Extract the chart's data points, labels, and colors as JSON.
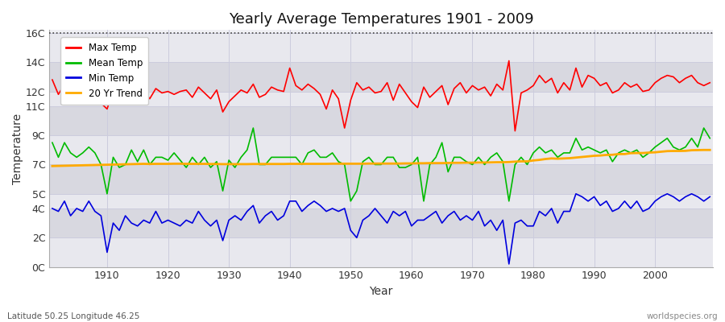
{
  "title": "Yearly Average Temperatures 1901 - 2009",
  "xlabel": "Year",
  "ylabel": "Temperature",
  "subtitle_left": "Latitude 50.25 Longitude 46.25",
  "subtitle_right": "worldspecies.org",
  "years": [
    1901,
    1902,
    1903,
    1904,
    1905,
    1906,
    1907,
    1908,
    1909,
    1910,
    1911,
    1912,
    1913,
    1914,
    1915,
    1916,
    1917,
    1918,
    1919,
    1920,
    1921,
    1922,
    1923,
    1924,
    1925,
    1926,
    1927,
    1928,
    1929,
    1930,
    1931,
    1932,
    1933,
    1934,
    1935,
    1936,
    1937,
    1938,
    1939,
    1940,
    1941,
    1942,
    1943,
    1944,
    1945,
    1946,
    1947,
    1948,
    1949,
    1950,
    1951,
    1952,
    1953,
    1954,
    1955,
    1956,
    1957,
    1958,
    1959,
    1960,
    1961,
    1962,
    1963,
    1964,
    1965,
    1966,
    1967,
    1968,
    1969,
    1970,
    1971,
    1972,
    1973,
    1974,
    1975,
    1976,
    1977,
    1978,
    1979,
    1980,
    1981,
    1982,
    1983,
    1984,
    1985,
    1986,
    1987,
    1988,
    1989,
    1990,
    1991,
    1992,
    1993,
    1994,
    1995,
    1996,
    1997,
    1998,
    1999,
    2000,
    2001,
    2002,
    2003,
    2004,
    2005,
    2006,
    2007,
    2008,
    2009
  ],
  "max_temp": [
    12.8,
    11.8,
    12.5,
    12.0,
    11.8,
    12.3,
    11.7,
    12.4,
    11.2,
    10.8,
    12.1,
    11.4,
    12.0,
    12.1,
    11.6,
    12.1,
    11.5,
    12.2,
    11.9,
    12.0,
    11.8,
    12.0,
    12.1,
    11.6,
    12.3,
    11.9,
    11.5,
    12.1,
    10.6,
    11.3,
    11.7,
    12.1,
    11.9,
    12.5,
    11.6,
    11.8,
    12.3,
    12.1,
    12.0,
    13.6,
    12.4,
    12.1,
    12.5,
    12.2,
    11.8,
    10.8,
    12.1,
    11.5,
    9.5,
    11.4,
    12.6,
    12.1,
    12.3,
    11.9,
    12.0,
    12.6,
    11.4,
    12.5,
    11.9,
    11.3,
    10.9,
    12.3,
    11.6,
    12.0,
    12.4,
    11.1,
    12.2,
    12.6,
    11.9,
    12.4,
    12.1,
    12.3,
    11.7,
    12.5,
    12.1,
    14.1,
    9.3,
    11.9,
    12.1,
    12.4,
    13.1,
    12.6,
    12.9,
    11.9,
    12.6,
    12.1,
    13.6,
    12.3,
    13.1,
    12.9,
    12.4,
    12.6,
    11.9,
    12.1,
    12.6,
    12.3,
    12.5,
    12.0,
    12.1,
    12.6,
    12.9,
    13.1,
    13.0,
    12.6,
    12.9,
    13.1,
    12.6,
    12.4,
    12.6
  ],
  "mean_temp": [
    8.5,
    7.5,
    8.5,
    7.8,
    7.5,
    7.8,
    8.2,
    7.8,
    7.0,
    5.0,
    7.5,
    6.8,
    7.0,
    8.0,
    7.2,
    8.0,
    7.0,
    7.5,
    7.5,
    7.3,
    7.8,
    7.3,
    6.8,
    7.5,
    7.0,
    7.5,
    6.8,
    7.2,
    5.2,
    7.3,
    6.8,
    7.5,
    8.0,
    9.5,
    7.0,
    7.0,
    7.5,
    7.5,
    7.5,
    7.5,
    7.5,
    7.0,
    7.8,
    8.0,
    7.5,
    7.5,
    7.8,
    7.2,
    7.0,
    4.5,
    5.2,
    7.2,
    7.5,
    7.0,
    7.0,
    7.5,
    7.5,
    6.8,
    6.8,
    7.0,
    7.5,
    4.5,
    7.0,
    7.5,
    8.5,
    6.5,
    7.5,
    7.5,
    7.2,
    7.0,
    7.5,
    7.0,
    7.5,
    7.8,
    7.2,
    4.5,
    7.0,
    7.5,
    7.0,
    7.8,
    8.2,
    7.8,
    8.0,
    7.5,
    7.8,
    7.8,
    8.8,
    8.0,
    8.2,
    8.0,
    7.8,
    8.0,
    7.2,
    7.8,
    8.0,
    7.8,
    8.0,
    7.5,
    7.8,
    8.2,
    8.5,
    8.8,
    8.2,
    8.0,
    8.2,
    8.8,
    8.2,
    9.5,
    8.8
  ],
  "min_temp": [
    4.0,
    3.8,
    4.5,
    3.5,
    4.0,
    3.8,
    4.5,
    3.8,
    3.5,
    1.0,
    3.0,
    2.5,
    3.5,
    3.0,
    2.8,
    3.2,
    3.0,
    3.8,
    3.0,
    3.2,
    3.0,
    2.8,
    3.2,
    3.0,
    3.8,
    3.2,
    2.8,
    3.2,
    1.8,
    3.2,
    3.5,
    3.2,
    3.8,
    4.2,
    3.0,
    3.5,
    3.8,
    3.2,
    3.5,
    4.5,
    4.5,
    3.8,
    4.2,
    4.5,
    4.2,
    3.8,
    4.0,
    3.8,
    4.0,
    2.5,
    2.0,
    3.2,
    3.5,
    4.0,
    3.5,
    3.0,
    3.8,
    3.5,
    3.8,
    2.8,
    3.2,
    3.2,
    3.5,
    3.8,
    3.0,
    3.5,
    3.8,
    3.2,
    3.5,
    3.2,
    3.8,
    2.8,
    3.2,
    2.5,
    3.2,
    0.2,
    3.0,
    3.2,
    2.8,
    2.8,
    3.8,
    3.5,
    4.0,
    3.0,
    3.8,
    3.8,
    5.0,
    4.8,
    4.5,
    4.8,
    4.2,
    4.5,
    3.8,
    4.0,
    4.5,
    4.0,
    4.5,
    3.8,
    4.0,
    4.5,
    4.8,
    5.0,
    4.8,
    4.5,
    4.8,
    5.0,
    4.8,
    4.5,
    4.8
  ],
  "trend_temp": [
    6.9,
    6.91,
    6.92,
    6.93,
    6.94,
    6.95,
    6.96,
    6.97,
    6.98,
    6.99,
    7.0,
    7.01,
    7.02,
    7.03,
    7.04,
    7.05,
    7.04,
    7.05,
    7.05,
    7.05,
    7.06,
    7.06,
    7.05,
    7.05,
    7.05,
    7.05,
    7.04,
    7.04,
    7.03,
    7.03,
    7.03,
    7.03,
    7.03,
    7.04,
    7.04,
    7.04,
    7.04,
    7.04,
    7.04,
    7.05,
    7.05,
    7.05,
    7.05,
    7.05,
    7.05,
    7.05,
    7.06,
    7.06,
    7.06,
    7.06,
    7.06,
    7.06,
    7.07,
    7.07,
    7.07,
    7.07,
    7.07,
    7.07,
    7.08,
    7.08,
    7.09,
    7.09,
    7.1,
    7.1,
    7.1,
    7.11,
    7.12,
    7.12,
    7.13,
    7.13,
    7.14,
    7.14,
    7.15,
    7.16,
    7.16,
    7.17,
    7.2,
    7.22,
    7.22,
    7.28,
    7.32,
    7.38,
    7.42,
    7.4,
    7.42,
    7.44,
    7.48,
    7.52,
    7.56,
    7.6,
    7.62,
    7.66,
    7.67,
    7.72,
    7.72,
    7.78,
    7.79,
    7.79,
    7.82,
    7.84,
    7.88,
    7.92,
    7.93,
    7.93,
    7.94,
    7.98,
    7.99,
    8.0,
    8.0
  ],
  "max_color": "#ff0000",
  "mean_color": "#00bb00",
  "min_color": "#0000dd",
  "trend_color": "#ffaa00",
  "bg_color": "#ffffff",
  "plot_bg_color": "#f0f0f4",
  "band_colors": [
    "#e8e8ee",
    "#d8d8e0"
  ],
  "grid_color": "#ccccdd",
  "top_dotted_y": 16,
  "ylim": [
    0,
    16.2
  ],
  "ytick_positions": [
    0,
    2,
    4,
    5,
    7,
    9,
    11,
    12,
    14,
    16
  ],
  "ytick_labels": [
    "0C",
    "2C",
    "4C",
    "5C",
    "7C",
    "9C",
    "11C",
    "12C",
    "14C",
    "16C"
  ],
  "xtick_positions": [
    1910,
    1920,
    1930,
    1940,
    1950,
    1960,
    1970,
    1980,
    1990,
    2000
  ],
  "legend_labels": [
    "Max Temp",
    "Mean Temp",
    "Min Temp",
    "20 Yr Trend"
  ]
}
